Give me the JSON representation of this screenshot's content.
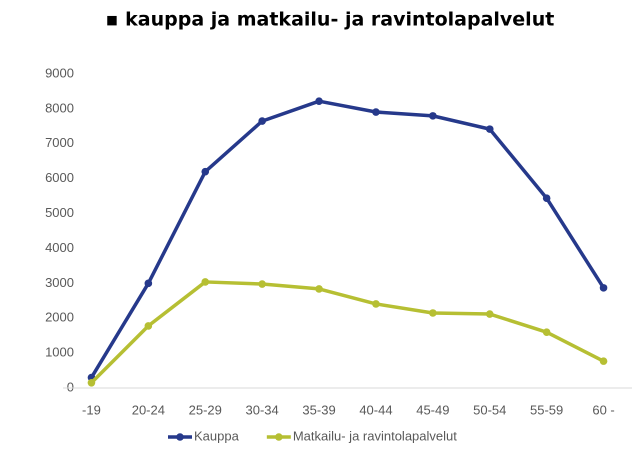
{
  "chart_data": {
    "type": "line",
    "title": "▪ kauppa ja matkailu- ja ravintolapalvelut",
    "categories": [
      "-19",
      "20-24",
      "25-29",
      "30-34",
      "35-39",
      "40-44",
      "45-49",
      "50-54",
      "55-59",
      "60 -"
    ],
    "series": [
      {
        "name": "Kauppa",
        "color": "#26398b",
        "values": [
          300,
          3000,
          6200,
          7650,
          8220,
          7910,
          7800,
          7420,
          5440,
          2870
        ]
      },
      {
        "name": "Matkailu- ja ravintolapalvelut",
        "color": "#b6bf33",
        "values": [
          150,
          1780,
          3040,
          2980,
          2840,
          2410,
          2150,
          2120,
          1600,
          770
        ]
      }
    ],
    "ylim": [
      0,
      9000
    ],
    "yticks": [
      0,
      1000,
      2000,
      3000,
      4000,
      5000,
      6000,
      7000,
      8000,
      9000
    ],
    "grid": false,
    "legend": "bottom"
  }
}
